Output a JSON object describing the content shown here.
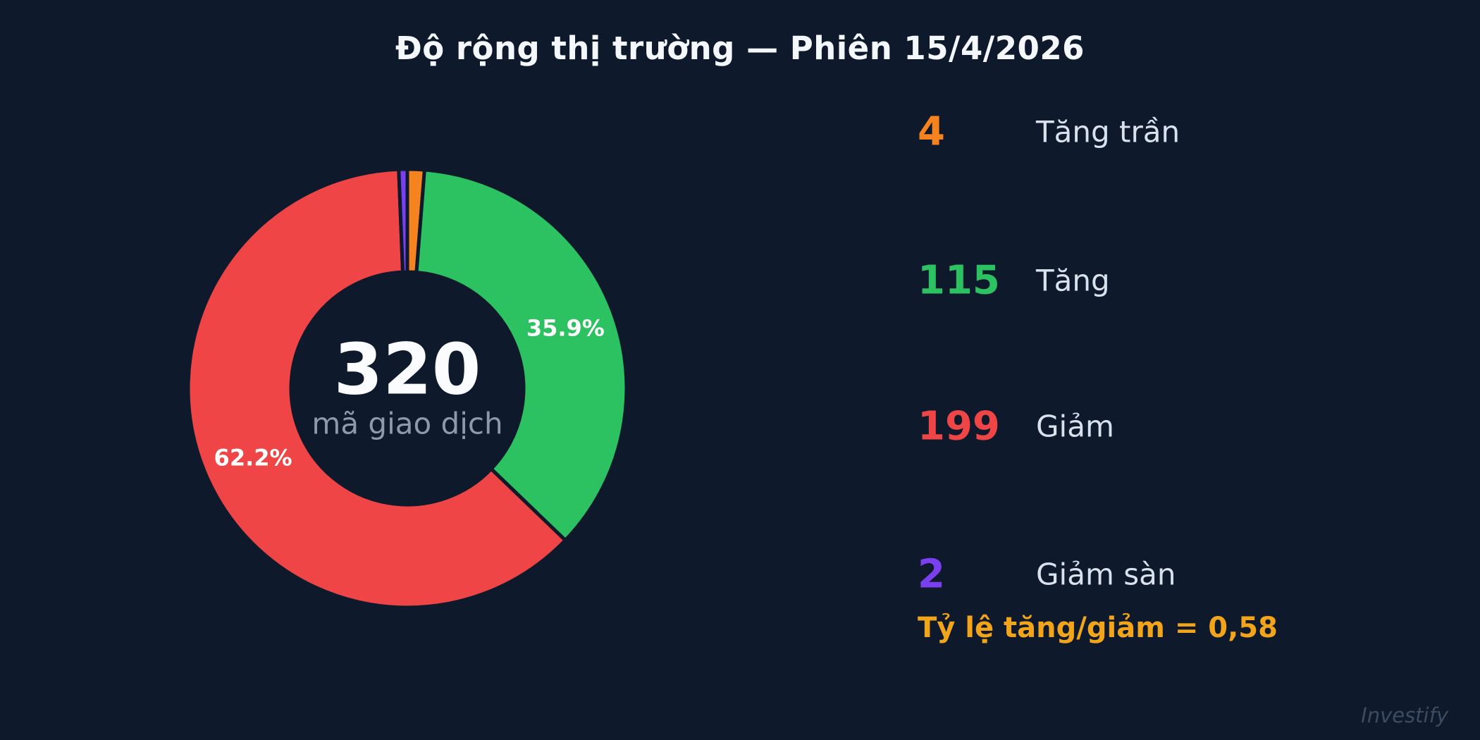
{
  "title": "Độ rộng thị trường — Phiên 15/4/2026",
  "watermark": "Investify",
  "colors": {
    "background": "#0e1a2b",
    "title_text": "#f4f7fb",
    "legend_label_text": "#d9e1ec",
    "center_value_text": "#fafcff",
    "center_label_text": "#8e99ab",
    "pct_label_text": "#ffffff",
    "ratio_text": "#f2a51b",
    "watermark_text": "#3d4a61"
  },
  "center": {
    "value": "320",
    "label": "mã giao dịch"
  },
  "ratio_text": "Tỷ lệ tăng/giảm = 0,58",
  "chart_data": {
    "type": "pie",
    "subtype": "donut",
    "title": "Độ rộng thị trường — Phiên 15/4/2026",
    "total": 320,
    "total_label": "mã giao dịch",
    "categories": [
      "Tăng trần",
      "Tăng",
      "Giảm",
      "Giảm sàn"
    ],
    "values": [
      4,
      115,
      199,
      2
    ],
    "slices": [
      {
        "name": "Tăng trần",
        "value": 4,
        "color": "#f5831f",
        "pct_label": ""
      },
      {
        "name": "Tăng",
        "value": 115,
        "color": "#2cc261",
        "pct_label": "35.9%"
      },
      {
        "name": "Giảm",
        "value": 199,
        "color": "#f04546",
        "pct_label": "62.2%"
      },
      {
        "name": "Giảm sàn",
        "value": 2,
        "color": "#7b3ff2",
        "pct_label": ""
      }
    ],
    "start_angle_deg": 0,
    "direction": "clockwise",
    "donut_hole_ratio": 0.53,
    "legend_position": "right",
    "ratio_annotation": "Tỷ lệ tăng/giảm = 0,58"
  }
}
